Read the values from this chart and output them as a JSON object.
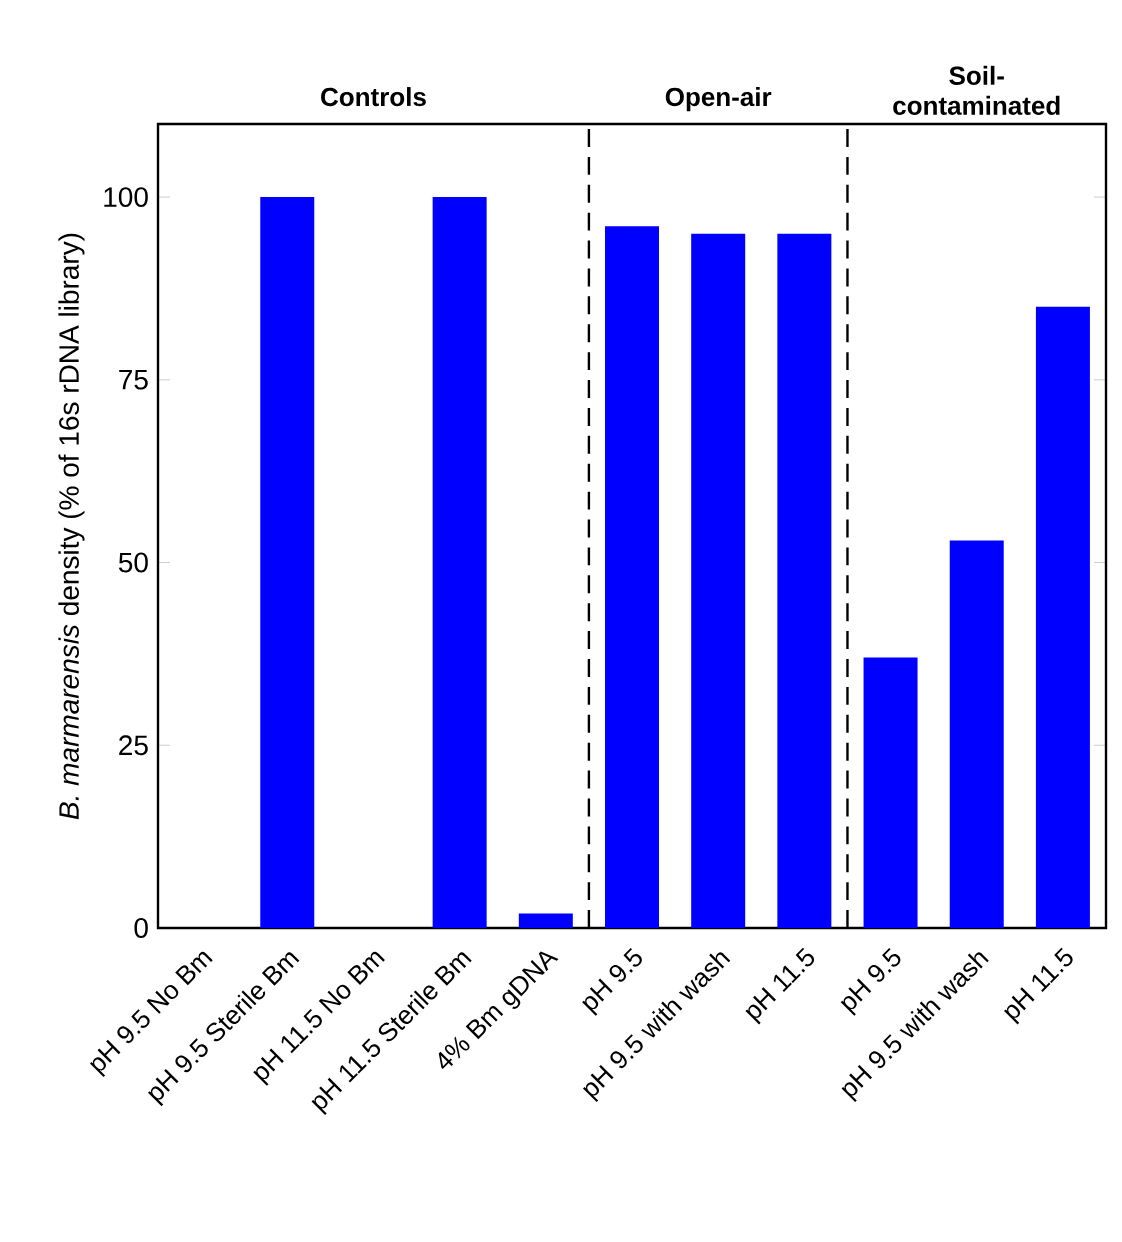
{
  "chart_data": {
    "type": "bar",
    "ylabel": "*B. marmarensis* density (% of 16s rDNA library)",
    "categories": [
      "pH 9.5 No Bm",
      "pH 9.5 Sterile Bm",
      "pH 11.5 No Bm",
      "pH 11.5 Sterile Bm",
      "4% Bm gDNA",
      "pH 9.5",
      "pH 9.5 with wash",
      "pH 11.5",
      "pH 9.5",
      "pH 9.5 with wash",
      "pH 11.5"
    ],
    "values": [
      0,
      100,
      0,
      100,
      2,
      96,
      95,
      95,
      37,
      53,
      85
    ],
    "color": "#0000ff",
    "ylim": [
      0,
      110
    ],
    "yticks": [
      0,
      25,
      50,
      75,
      100
    ],
    "annotations": [
      "Controls",
      "Open-air",
      "Soil-contaminated"
    ],
    "grid": false
  }
}
